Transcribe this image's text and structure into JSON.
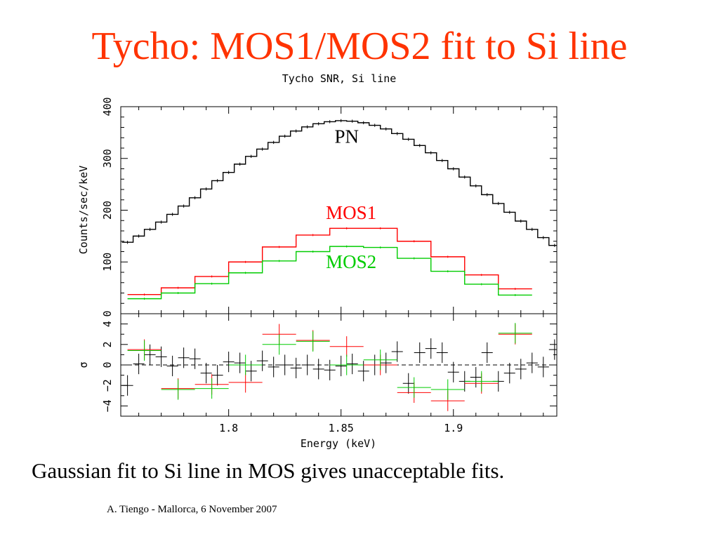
{
  "slide": {
    "title": "Tycho: MOS1/MOS2 fit to Si line",
    "caption": "Gaussian fit to Si line in MOS gives unacceptable fits.",
    "footer": "A. Tiengo - Mallorca,  6 November 2007"
  },
  "chart_data": {
    "type": "line",
    "title": "Tycho SNR, Si line",
    "xlabel": "Energy (keV)",
    "xlim": [
      1.752,
      1.946
    ],
    "x_ticks": [
      {
        "value": 1.8,
        "label": "1.8"
      },
      {
        "value": 1.85,
        "label": "1.85"
      },
      {
        "value": 1.9,
        "label": "1.9"
      }
    ],
    "top_panel": {
      "ylabel": "Counts/sec/keV",
      "ylim": [
        0,
        400
      ],
      "y_ticks": [
        {
          "value": 0,
          "label": "0"
        },
        {
          "value": 100,
          "label": "100"
        },
        {
          "value": 200,
          "label": "200"
        },
        {
          "value": 300,
          "label": "300"
        },
        {
          "value": 400,
          "label": "400"
        }
      ],
      "annotations": [
        {
          "text": "PN",
          "x": 1.8525,
          "y": 330,
          "color": "#000000"
        },
        {
          "text": "MOS1",
          "x": 1.8545,
          "y": 183,
          "color": "#ff0000"
        },
        {
          "text": "MOS2",
          "x": 1.8545,
          "y": 88,
          "color": "#00cc00"
        }
      ],
      "series": [
        {
          "label": "PN",
          "color": "#000000",
          "bin_width": 0.005,
          "x": [
            1.755,
            1.76,
            1.765,
            1.77,
            1.775,
            1.78,
            1.785,
            1.79,
            1.795,
            1.8,
            1.805,
            1.81,
            1.815,
            1.82,
            1.825,
            1.83,
            1.835,
            1.84,
            1.845,
            1.85,
            1.855,
            1.86,
            1.865,
            1.87,
            1.875,
            1.88,
            1.885,
            1.89,
            1.895,
            1.9,
            1.905,
            1.91,
            1.915,
            1.92,
            1.925,
            1.93,
            1.935,
            1.94,
            1.945
          ],
          "y": [
            138,
            150,
            163,
            177,
            192,
            208,
            224,
            241,
            257,
            273,
            289,
            304,
            318,
            331,
            343,
            353,
            361,
            367,
            371,
            373,
            372,
            369,
            364,
            357,
            348,
            337,
            325,
            311,
            296,
            280,
            264,
            247,
            230,
            213,
            196,
            179,
            163,
            147,
            132
          ]
        },
        {
          "label": "MOS1",
          "color": "#ff0000",
          "bin_width": 0.015,
          "x": [
            1.7625,
            1.7775,
            1.7925,
            1.8075,
            1.8225,
            1.8375,
            1.8525,
            1.8675,
            1.8825,
            1.8975,
            1.9125,
            1.9275
          ],
          "y": [
            37,
            50,
            72,
            100,
            129,
            152,
            165,
            165,
            140,
            110,
            75,
            48
          ]
        },
        {
          "label": "MOS2",
          "color": "#00cc00",
          "bin_width": 0.015,
          "x": [
            1.7625,
            1.7775,
            1.7925,
            1.8075,
            1.8225,
            1.8375,
            1.8525,
            1.8675,
            1.8825,
            1.8975,
            1.9125,
            1.9275
          ],
          "y": [
            29,
            40,
            58,
            79,
            102,
            120,
            130,
            128,
            107,
            82,
            57,
            36
          ]
        }
      ]
    },
    "bottom_panel": {
      "ylabel": "σ",
      "ylim": [
        -5,
        5
      ],
      "reference_line": 0,
      "y_ticks": [
        {
          "value": -4,
          "label": "−4"
        },
        {
          "value": -2,
          "label": "−2"
        },
        {
          "value": 0,
          "label": "0"
        },
        {
          "value": 2,
          "label": "2"
        },
        {
          "value": 4,
          "label": "4"
        }
      ],
      "series": [
        {
          "label": "PN residuals",
          "color": "#000000",
          "bin_width": 0.005,
          "x": [
            1.755,
            1.76,
            1.765,
            1.77,
            1.775,
            1.78,
            1.785,
            1.79,
            1.795,
            1.8,
            1.805,
            1.81,
            1.815,
            1.82,
            1.825,
            1.83,
            1.835,
            1.84,
            1.845,
            1.85,
            1.855,
            1.86,
            1.865,
            1.87,
            1.875,
            1.88,
            1.885,
            1.89,
            1.895,
            1.9,
            1.905,
            1.91,
            1.915,
            1.92,
            1.925,
            1.93,
            1.935,
            1.94,
            1.945
          ],
          "y": [
            -2.0,
            0.1,
            1.0,
            0.8,
            -0.1,
            0.7,
            0.6,
            -0.8,
            -1.0,
            0.3,
            0.2,
            -0.6,
            0.4,
            -0.2,
            0.0,
            -0.3,
            0.0,
            -0.4,
            -0.5,
            -0.1,
            0.1,
            -0.6,
            0.0,
            0.2,
            1.3,
            -1.8,
            1.2,
            1.6,
            1.2,
            -0.7,
            -1.6,
            -1.2,
            1.2,
            -1.6,
            -0.8,
            -0.4,
            0.2,
            -0.2,
            1.5
          ]
        },
        {
          "label": "MOS1 residuals",
          "color": "#ff0000",
          "bin_width": 0.015,
          "x": [
            1.7625,
            1.7775,
            1.7925,
            1.8075,
            1.8225,
            1.8375,
            1.8525,
            1.8675,
            1.8825,
            1.8975,
            1.9125,
            1.9275
          ],
          "y": [
            1.5,
            -2.3,
            -1.9,
            -1.7,
            3.0,
            2.4,
            1.8,
            0.0,
            -2.7,
            -3.5,
            -1.8,
            3.0
          ]
        },
        {
          "label": "MOS2 residuals",
          "color": "#00cc00",
          "bin_width": 0.015,
          "x": [
            1.7625,
            1.7775,
            1.7925,
            1.8075,
            1.8225,
            1.8375,
            1.8525,
            1.8675,
            1.8825,
            1.8975,
            1.9125,
            1.9275
          ],
          "y": [
            1.4,
            -2.4,
            -2.3,
            0.0,
            2.0,
            2.3,
            0.0,
            0.5,
            -2.2,
            -2.4,
            -1.6,
            3.1
          ]
        }
      ]
    }
  }
}
